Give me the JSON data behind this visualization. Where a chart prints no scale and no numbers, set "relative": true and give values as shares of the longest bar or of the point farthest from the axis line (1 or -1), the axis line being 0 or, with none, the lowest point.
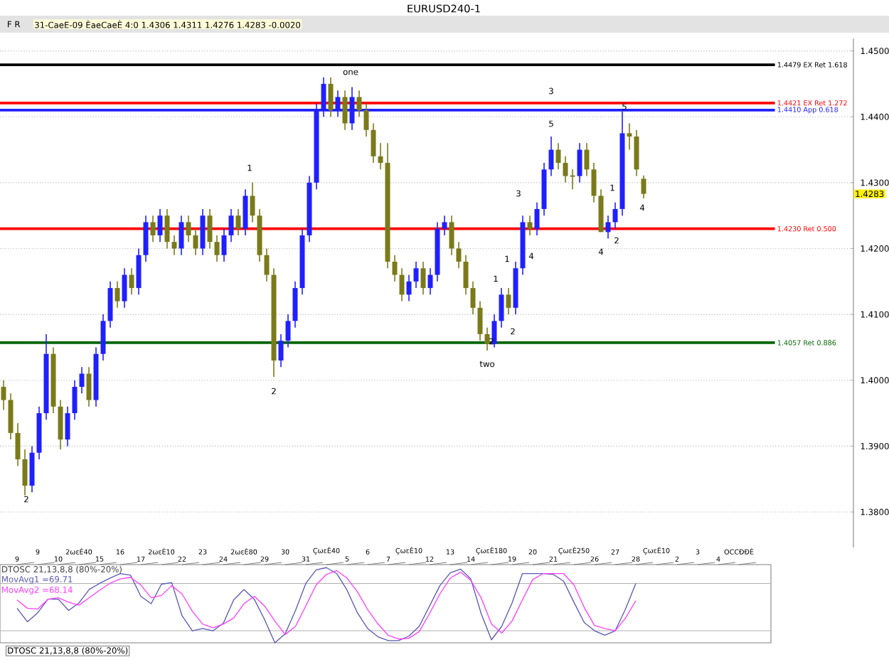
{
  "chart_data": [
    {
      "type": "candlestick",
      "title": "EURUSD240-1",
      "categories": [
        null,
        null,
        null,
        null,
        null,
        null,
        null,
        null,
        null,
        null,
        null,
        null,
        null,
        null,
        null,
        null,
        null,
        null,
        null,
        null,
        null,
        null,
        null,
        null,
        null,
        null,
        null,
        null,
        null,
        null,
        null,
        null,
        null,
        null,
        null,
        null,
        null,
        null,
        null,
        null,
        null,
        null,
        null,
        null,
        null,
        null,
        null,
        null,
        null,
        null,
        null,
        null,
        null,
        null,
        null,
        null,
        null,
        null,
        null,
        null,
        null,
        null,
        null,
        null,
        null,
        null,
        null,
        null,
        null,
        null,
        null,
        null,
        null,
        null,
        null,
        null,
        null,
        null,
        null,
        null,
        null,
        null,
        null,
        null,
        null,
        null,
        null,
        null,
        null,
        null,
        null,
        null,
        null,
        null,
        null,
        null,
        null,
        null,
        null,
        null,
        null,
        null,
        null,
        null,
        null,
        null,
        null,
        null,
        null,
        null,
        null,
        null,
        null,
        null,
        null,
        null,
        null,
        null,
        null,
        null
      ],
      "ohlc": [
        [
          1.399,
          1.4,
          1.3955,
          1.397
        ],
        [
          1.397,
          1.398,
          1.391,
          1.392
        ],
        [
          1.392,
          1.3935,
          1.387,
          1.388
        ],
        [
          1.388,
          1.3895,
          1.3825,
          1.384
        ],
        [
          1.384,
          1.39,
          1.383,
          1.389
        ],
        [
          1.389,
          1.396,
          1.388,
          1.395
        ],
        [
          1.395,
          1.407,
          1.394,
          1.404
        ],
        [
          1.404,
          1.405,
          1.395,
          1.396
        ],
        [
          1.396,
          1.397,
          1.3895,
          1.391
        ],
        [
          1.391,
          1.396,
          1.39,
          1.395
        ],
        [
          1.395,
          1.4,
          1.394,
          1.399
        ],
        [
          1.399,
          1.402,
          1.398,
          1.401
        ],
        [
          1.401,
          1.402,
          1.396,
          1.397
        ],
        [
          1.397,
          1.405,
          1.396,
          1.404
        ],
        [
          1.404,
          1.41,
          1.403,
          1.409
        ],
        [
          1.409,
          1.415,
          1.408,
          1.414
        ],
        [
          1.414,
          1.415,
          1.411,
          1.412
        ],
        [
          1.412,
          1.417,
          1.411,
          1.416
        ],
        [
          1.416,
          1.417,
          1.413,
          1.414
        ],
        [
          1.414,
          1.42,
          1.413,
          1.419
        ],
        [
          1.419,
          1.425,
          1.418,
          1.424
        ],
        [
          1.424,
          1.425,
          1.421,
          1.422
        ],
        [
          1.422,
          1.426,
          1.421,
          1.425
        ],
        [
          1.425,
          1.426,
          1.42,
          1.421
        ],
        [
          1.421,
          1.422,
          1.419,
          1.42
        ],
        [
          1.42,
          1.425,
          1.419,
          1.424
        ],
        [
          1.424,
          1.425,
          1.421,
          1.422
        ],
        [
          1.422,
          1.423,
          1.419,
          1.42
        ],
        [
          1.42,
          1.426,
          1.419,
          1.425
        ],
        [
          1.425,
          1.426,
          1.42,
          1.421
        ],
        [
          1.421,
          1.422,
          1.418,
          1.419
        ],
        [
          1.419,
          1.423,
          1.418,
          1.422
        ],
        [
          1.422,
          1.426,
          1.421,
          1.425
        ],
        [
          1.425,
          1.426,
          1.422,
          1.423
        ],
        [
          1.423,
          1.429,
          1.422,
          1.428
        ],
        [
          1.428,
          1.43,
          1.424,
          1.425
        ],
        [
          1.425,
          1.426,
          1.418,
          1.419
        ],
        [
          1.419,
          1.42,
          1.415,
          1.416
        ],
        [
          1.416,
          1.417,
          1.4005,
          1.403
        ],
        [
          1.403,
          1.407,
          1.402,
          1.406
        ],
        [
          1.406,
          1.41,
          1.405,
          1.409
        ],
        [
          1.409,
          1.415,
          1.408,
          1.414
        ],
        [
          1.414,
          1.423,
          1.413,
          1.422
        ],
        [
          1.422,
          1.431,
          1.421,
          1.43
        ],
        [
          1.43,
          1.442,
          1.429,
          1.441
        ],
        [
          1.441,
          1.446,
          1.44,
          1.445
        ],
        [
          1.445,
          1.446,
          1.44,
          1.441
        ],
        [
          1.441,
          1.444,
          1.44,
          1.443
        ],
        [
          1.443,
          1.444,
          1.438,
          1.439
        ],
        [
          1.439,
          1.4445,
          1.438,
          1.443
        ],
        [
          1.443,
          1.444,
          1.44,
          1.441
        ],
        [
          1.441,
          1.442,
          1.437,
          1.438
        ],
        [
          1.438,
          1.439,
          1.433,
          1.434
        ],
        [
          1.434,
          1.436,
          1.432,
          1.433
        ],
        [
          1.433,
          1.436,
          1.417,
          1.418
        ],
        [
          1.418,
          1.419,
          1.415,
          1.416
        ],
        [
          1.416,
          1.417,
          1.412,
          1.413
        ],
        [
          1.413,
          1.416,
          1.412,
          1.415
        ],
        [
          1.415,
          1.418,
          1.414,
          1.417
        ],
        [
          1.417,
          1.418,
          1.413,
          1.414
        ],
        [
          1.414,
          1.417,
          1.413,
          1.416
        ],
        [
          1.416,
          1.424,
          1.415,
          1.423
        ],
        [
          1.423,
          1.425,
          1.422,
          1.424
        ],
        [
          1.424,
          1.425,
          1.419,
          1.42
        ],
        [
          1.42,
          1.421,
          1.417,
          1.418
        ],
        [
          1.418,
          1.419,
          1.413,
          1.414
        ],
        [
          1.414,
          1.415,
          1.41,
          1.411
        ],
        [
          1.411,
          1.412,
          1.406,
          1.407
        ],
        [
          1.407,
          1.408,
          1.4045,
          1.4055
        ],
        [
          1.4055,
          1.41,
          1.405,
          1.409
        ],
        [
          1.409,
          1.414,
          1.408,
          1.413
        ],
        [
          1.413,
          1.414,
          1.41,
          1.411
        ],
        [
          1.411,
          1.418,
          1.41,
          1.417
        ],
        [
          1.417,
          1.425,
          1.416,
          1.424
        ],
        [
          1.424,
          1.425,
          1.422,
          1.423
        ],
        [
          1.423,
          1.427,
          1.422,
          1.426
        ],
        [
          1.426,
          1.433,
          1.425,
          1.432
        ],
        [
          1.432,
          1.437,
          1.431,
          1.435
        ],
        [
          1.435,
          1.436,
          1.432,
          1.433
        ],
        [
          1.433,
          1.434,
          1.43,
          1.431
        ],
        [
          1.431,
          1.432,
          1.429,
          1.431
        ],
        [
          1.431,
          1.436,
          1.43,
          1.435
        ],
        [
          1.435,
          1.436,
          1.431,
          1.432
        ],
        [
          1.432,
          1.433,
          1.427,
          1.428
        ],
        [
          1.428,
          1.429,
          1.4225,
          1.4225
        ],
        [
          1.4225,
          1.425,
          1.4215,
          1.424
        ],
        [
          1.424,
          1.427,
          1.423,
          1.426
        ],
        [
          1.426,
          1.4408,
          1.425,
          1.4375
        ],
        [
          1.4375,
          1.439,
          1.435,
          1.437
        ],
        [
          1.437,
          1.438,
          1.431,
          1.432
        ],
        [
          1.4306,
          1.4311,
          1.4276,
          1.4283
        ],
        null,
        null,
        null,
        null,
        null,
        null,
        null,
        null,
        null,
        null,
        null,
        null,
        null,
        null,
        null,
        null,
        null,
        null,
        null,
        null,
        null,
        null,
        null,
        null,
        null,
        null,
        null,
        null,
        null
      ],
      "colors": [
        "#7a7a1a",
        "#7a7a1a",
        "#7a7a1a",
        "#7a7a1a",
        "#2020ff",
        "#2020ff",
        "#2020ff",
        "#7a7a1a",
        "#7a7a1a",
        "#2020ff",
        "#2020ff",
        "#2020ff",
        "#7a7a1a",
        "#2020ff",
        "#2020ff",
        "#2020ff",
        "#7a7a1a",
        "#2020ff",
        "#7a7a1a",
        "#2020ff",
        "#2020ff",
        "#7a7a1a",
        "#2020ff",
        "#7a7a1a",
        "#7a7a1a",
        "#2020ff",
        "#7a7a1a",
        "#7a7a1a",
        "#2020ff",
        "#7a7a1a",
        "#7a7a1a",
        "#2020ff",
        "#2020ff",
        "#7a7a1a",
        "#2020ff",
        "#7a7a1a",
        "#7a7a1a",
        "#7a7a1a",
        "#7a7a1a",
        "#2020ff",
        "#2020ff",
        "#2020ff",
        "#2020ff",
        "#2020ff",
        "#2020ff",
        "#2020ff",
        "#7a7a1a",
        "#2020ff",
        "#7a7a1a",
        "#2020ff",
        "#7a7a1a",
        "#7a7a1a",
        "#7a7a1a",
        "#7a7a1a",
        "#7a7a1a",
        "#7a7a1a",
        "#7a7a1a",
        "#2020ff",
        "#2020ff",
        "#7a7a1a",
        "#2020ff",
        "#2020ff",
        "#2020ff",
        "#7a7a1a",
        "#7a7a1a",
        "#7a7a1a",
        "#7a7a1a",
        "#7a7a1a",
        "#7a7a1a",
        "#2020ff",
        "#2020ff",
        "#7a7a1a",
        "#2020ff",
        "#2020ff",
        "#7a7a1a",
        "#2020ff",
        "#2020ff",
        "#2020ff",
        "#7a7a1a",
        "#7a7a1a",
        "#7a7a1a",
        "#2020ff",
        "#7a7a1a",
        "#7a7a1a",
        "#7a7a1a",
        "#2020ff",
        "#2020ff",
        "#2020ff",
        "#7a7a1a",
        "#7a7a1a",
        "#7a7a1a",
        null,
        null,
        null,
        null,
        null,
        null,
        null,
        null,
        null,
        null,
        null,
        null,
        null,
        null,
        null,
        null,
        null,
        null,
        null,
        null,
        null,
        null,
        null,
        null,
        null,
        null,
        null,
        null,
        null
      ],
      "ref_lines": [
        {
          "axis": "y",
          "value": 1.4479,
          "label": "1.4479 EX Ret 1.618",
          "color": "#000000"
        },
        {
          "axis": "y",
          "value": 1.4421,
          "label": "1.4421 EX Ret 1.272",
          "color": "#ff0000"
        },
        {
          "axis": "y",
          "value": 1.441,
          "label": "1.4410 App 0.618",
          "color": "#2020ff"
        },
        {
          "axis": "y",
          "value": 1.423,
          "label": "1.4230 Ret 0.500",
          "color": "#ff0000"
        },
        {
          "axis": "y",
          "value": 1.4057,
          "label": "1.4057 Ret 0.886",
          "color": "#006400"
        }
      ],
      "ylim": [
        1.3746,
        1.4519
      ],
      "yticks": [
        {
          "value": 1.38,
          "label": "1.3800"
        },
        {
          "value": 1.39,
          "label": "1.3900"
        },
        {
          "value": 1.4,
          "label": "1.4000"
        },
        {
          "value": 1.41,
          "label": "1.4100"
        },
        {
          "value": 1.42,
          "label": "1.4200"
        },
        {
          "value": 1.43,
          "label": "1.4300"
        },
        {
          "value": 1.44,
          "label": "1.4400"
        },
        {
          "value": 1.45,
          "label": "1.4500"
        }
      ],
      "grid": "y",
      "tick_labels": "y",
      "annotations": [
        "one",
        "1",
        "2",
        "2",
        "two",
        "2",
        "1",
        "1",
        "2",
        "3",
        "4",
        "3",
        "5",
        "4",
        "1",
        "2",
        "5",
        "4",
        "1.4283",
        "F R",
        "31-CaeE-09 ÈaeCaeÈ 4:0  1.4306  1.4311  1.4276  1.4283  -0.0020"
      ]
    },
    {
      "type": "line",
      "title": "DTOSC 21,13,8,8 (80%-20%)",
      "relative": true,
      "legend": "top left",
      "categories": [
        "9",
        null,
        "9",
        null,
        "10",
        null,
        "2ωεÈ40",
        null,
        "15",
        null,
        "16",
        null,
        "17",
        null,
        "2ωεÈ10",
        null,
        "22",
        null,
        "23",
        null,
        "24",
        null,
        "2ωεÈ80",
        null,
        "29",
        null,
        "30",
        null,
        "31",
        null,
        "ÇωεÈ40",
        null,
        "5",
        null,
        "6",
        null,
        "7",
        null,
        "ÇωεÈ10",
        null,
        "12",
        null,
        "13",
        null,
        "14",
        null,
        "ÇωεÈ180",
        null,
        "19",
        null,
        "20",
        null,
        "21",
        null,
        "ÇωεÈ250",
        null,
        "26",
        null,
        "27",
        null,
        "28",
        null,
        "ÇωεÈ10",
        null,
        "2",
        null,
        "3",
        null,
        "4",
        null,
        "OCCÐÐÈ"
      ],
      "series": [
        {
          "name": "MovAvg1 =69.71",
          "color": "#5a5ab4",
          "values": [
            0.46,
            0.28,
            0.4,
            0.58,
            0.58,
            0.43,
            0.53,
            0.71,
            0.79,
            0.86,
            0.92,
            0.9,
            0.62,
            0.52,
            0.78,
            0.8,
            0.36,
            0.16,
            0.19,
            0.16,
            0.26,
            0.57,
            0.71,
            0.58,
            0.31,
            0,
            0.12,
            0.43,
            0.79,
            0.97,
            1.0,
            0.92,
            0.7,
            0.4,
            0.19,
            0.08,
            0.03,
            0.03,
            0.09,
            0.22,
            0.49,
            0.76,
            0.93,
            0.98,
            0.85,
            0.39,
            0.04,
            0.22,
            0.53,
            0.92,
            0.92,
            0.92,
            0.91,
            0.82,
            0.54,
            0.27,
            0.16,
            0.1,
            0.16,
            0.45,
            0.79,
            null,
            null,
            null,
            null,
            null,
            null,
            null,
            null,
            null,
            null
          ]
        },
        {
          "name": "MovAvg2 =68.14",
          "color": "#ff40ff",
          "values": [
            0.57,
            0.46,
            0.45,
            0.58,
            0.6,
            0.54,
            0.5,
            0.6,
            0.7,
            0.79,
            0.85,
            0.87,
            0.77,
            0.6,
            0.63,
            0.76,
            0.65,
            0.42,
            0.25,
            0.2,
            0.25,
            0.33,
            0.52,
            0.62,
            0.49,
            0.29,
            0.11,
            0.22,
            0.49,
            0.77,
            0.91,
            0.96,
            0.86,
            0.68,
            0.44,
            0.25,
            0.1,
            0.05,
            0.06,
            0.15,
            0.39,
            0.65,
            0.86,
            0.94,
            0.83,
            0.6,
            0.25,
            0.13,
            0.29,
            0.57,
            0.84,
            0.92,
            0.92,
            0.92,
            0.77,
            0.47,
            0.23,
            0.19,
            0.16,
            0.33,
            0.56,
            null,
            null,
            null,
            null,
            null,
            null,
            null,
            null,
            null,
            null
          ]
        }
      ],
      "ref_lines": [
        {
          "axis": "y",
          "value": 0.79,
          "color": "#b0b0b0"
        },
        {
          "axis": "y",
          "value": 0.16,
          "color": "#b0b0b0"
        }
      ],
      "tick_labels": "x",
      "annotations": [
        "DTOSC 21,13,8,8 (80%-20%)"
      ]
    }
  ]
}
